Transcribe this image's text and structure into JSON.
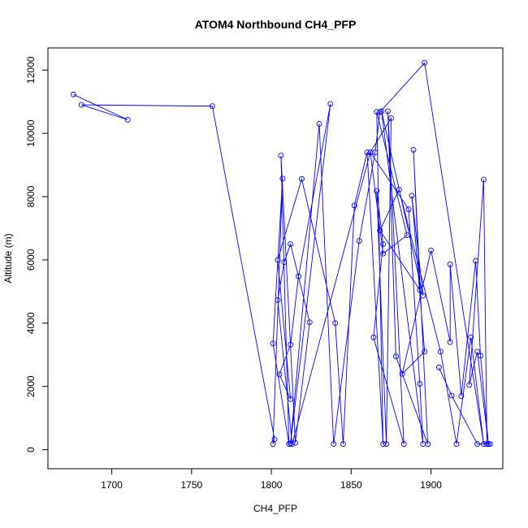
{
  "chart_data": {
    "type": "line",
    "title": "ATOM4 Northbound CH4_PFP",
    "xlabel": "CH4_PFP",
    "ylabel": "Altitude (m)",
    "xlim": [
      1660,
      1945
    ],
    "ylim": [
      -600,
      12700
    ],
    "xticks": [
      "1700",
      "1750",
      "1800",
      "1850",
      "1900"
    ],
    "xtick_values": [
      1700,
      1750,
      1800,
      1850,
      1900
    ],
    "yticks": [
      "0",
      "2000",
      "4000",
      "6000",
      "8000",
      "10000",
      "12000"
    ],
    "ytick_values": [
      0,
      2000,
      4000,
      6000,
      8000,
      10000,
      12000
    ],
    "grid": false,
    "series": [
      {
        "color": "#0000ff",
        "marker": "open-circle",
        "points": [
          [
            1676,
            11230
          ],
          [
            1710,
            10430
          ],
          [
            1681,
            10900
          ],
          [
            1763,
            10860
          ],
          [
            1802,
            330
          ],
          [
            1801,
            180
          ],
          [
            1807,
            8570
          ],
          [
            1801,
            3360
          ],
          [
            1811,
            180
          ],
          [
            1806,
            9300
          ],
          [
            1815,
            220
          ],
          [
            1824,
            4030
          ],
          [
            1812,
            6500
          ],
          [
            1808,
            5930
          ],
          [
            1804,
            4730
          ],
          [
            1813,
            180
          ],
          [
            1862,
            9400
          ],
          [
            1875,
            10480
          ],
          [
            1872,
            180
          ],
          [
            1866,
            8180
          ],
          [
            1870,
            6500
          ],
          [
            1864,
            3550
          ],
          [
            1883,
            180
          ],
          [
            1873,
            10700
          ],
          [
            1878,
            2950
          ],
          [
            1898,
            180
          ],
          [
            1889,
            9480
          ],
          [
            1893,
            5050
          ],
          [
            1868,
            6930
          ],
          [
            1880,
            8220
          ],
          [
            1906,
            3100
          ],
          [
            1916,
            180
          ],
          [
            1925,
            3550
          ],
          [
            1933,
            180
          ],
          [
            1896,
            12230
          ],
          [
            1868,
            10670
          ],
          [
            1865,
            9400
          ],
          [
            1855,
            6600
          ],
          [
            1839,
            180
          ],
          [
            1830,
            10300
          ],
          [
            1812,
            200
          ],
          [
            1837,
            10930
          ],
          [
            1817,
            5480
          ],
          [
            1812,
            3320
          ],
          [
            1805,
            2380
          ],
          [
            1812,
            1600
          ],
          [
            1804,
            6000
          ],
          [
            1819,
            8560
          ],
          [
            1840,
            4000
          ],
          [
            1845,
            180
          ],
          [
            1852,
            7720
          ],
          [
            1860,
            9400
          ],
          [
            1870,
            180
          ],
          [
            1866,
            10680
          ],
          [
            1885,
            6780
          ],
          [
            1870,
            6200
          ],
          [
            1862,
            9400
          ],
          [
            1886,
            7600
          ],
          [
            1893,
            2080
          ],
          [
            1895,
            180
          ],
          [
            1869,
            10700
          ],
          [
            1895,
            4870
          ],
          [
            1888,
            8030
          ],
          [
            1896,
            3100
          ],
          [
            1882,
            2400
          ],
          [
            1900,
            6300
          ],
          [
            1912,
            3400
          ],
          [
            1912,
            5860
          ],
          [
            1919,
            1700
          ],
          [
            1928,
            5970
          ],
          [
            1931,
            2970
          ],
          [
            1936,
            180
          ],
          [
            1929,
            3100
          ],
          [
            1924,
            2050
          ],
          [
            1933,
            8540
          ],
          [
            1935,
            180
          ],
          [
            1937,
            180
          ],
          [
            1929,
            180
          ],
          [
            1913,
            1710
          ],
          [
            1905,
            2600
          ]
        ]
      }
    ]
  }
}
